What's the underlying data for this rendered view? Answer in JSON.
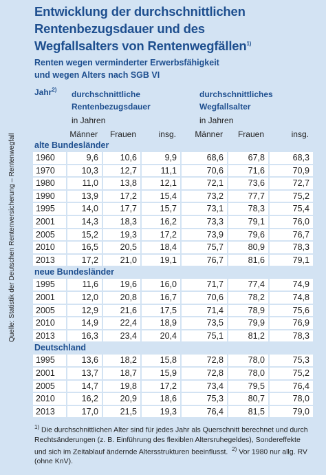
{
  "title": {
    "lines": [
      "Entwicklung der durchschnittlichen",
      "Rentenbezugsdauer und des",
      "Wegfallsalters von Rentenwegfällen"
    ],
    "note": "1)"
  },
  "subtitle": [
    "Renten wegen verminderter Erwerbsfähigkeit",
    "und wegen Alters nach SGB VI"
  ],
  "table": {
    "header": {
      "year": "Jahr",
      "year_note": "2)",
      "group1": [
        "durchschnittliche",
        "Rentenbezugsdauer",
        "in Jahren"
      ],
      "group2": [
        "durchschnittliches",
        "Wegfallsalter",
        "in Jahren"
      ],
      "columns": [
        "Männer",
        "Frauen",
        "insg.",
        "Männer",
        "Frauen",
        "insg."
      ]
    },
    "sections": [
      {
        "name": "alte Bundesländer",
        "rows": [
          [
            "1960",
            "9,6",
            "10,6",
            "9,9",
            "68,6",
            "67,8",
            "68,3"
          ],
          [
            "1970",
            "10,3",
            "12,7",
            "11,1",
            "70,6",
            "71,6",
            "70,9"
          ],
          [
            "1980",
            "11,0",
            "13,8",
            "12,1",
            "72,1",
            "73,6",
            "72,7"
          ],
          [
            "1990",
            "13,9",
            "17,2",
            "15,4",
            "73,2",
            "77,7",
            "75,2"
          ],
          [
            "1995",
            "14,0",
            "17,7",
            "15,7",
            "73,1",
            "78,3",
            "75,4"
          ],
          [
            "2001",
            "14,3",
            "18,3",
            "16,2",
            "73,3",
            "79,1",
            "76,0"
          ],
          [
            "2005",
            "15,2",
            "19,3",
            "17,2",
            "73,9",
            "79,6",
            "76,7"
          ],
          [
            "2010",
            "16,5",
            "20,5",
            "18,4",
            "75,7",
            "80,9",
            "78,3"
          ],
          [
            "2013",
            "17,2",
            "21,0",
            "19,1",
            "76,7",
            "81,6",
            "79,1"
          ]
        ]
      },
      {
        "name": "neue Bundesländer",
        "rows": [
          [
            "1995",
            "11,6",
            "19,6",
            "16,0",
            "71,7",
            "77,4",
            "74,9"
          ],
          [
            "2001",
            "12,0",
            "20,8",
            "16,7",
            "70,6",
            "78,2",
            "74,8"
          ],
          [
            "2005",
            "12,9",
            "21,6",
            "17,5",
            "71,4",
            "78,9",
            "75,6"
          ],
          [
            "2010",
            "14,9",
            "22,4",
            "18,9",
            "73,5",
            "79,9",
            "76,9"
          ],
          [
            "2013",
            "16,3",
            "23,4",
            "20,4",
            "75,1",
            "81,2",
            "78,3"
          ]
        ]
      },
      {
        "name": "Deutschland",
        "rows": [
          [
            "1995",
            "13,6",
            "18,2",
            "15,8",
            "72,8",
            "78,0",
            "75,3"
          ],
          [
            "2001",
            "13,7",
            "18,7",
            "15,9",
            "72,8",
            "78,0",
            "75,2"
          ],
          [
            "2005",
            "14,7",
            "19,8",
            "17,2",
            "73,4",
            "79,5",
            "76,4"
          ],
          [
            "2010",
            "16,2",
            "20,9",
            "18,6",
            "75,3",
            "80,7",
            "78,0"
          ],
          [
            "2013",
            "17,0",
            "21,5",
            "19,3",
            "76,4",
            "81,5",
            "79,0"
          ]
        ]
      }
    ]
  },
  "footnotes": [
    {
      "mark": "1)",
      "text": "Die durchschnittlichen Alter sind für jedes Jahr als Querschnitt berechnet und durch Rechtsänderungen (z. B. Einführung des flexiblen Altersruhegeldes), Sondereffekte und sich im Zeitablauf ändernde Altersstrukturen beeinflusst."
    },
    {
      "mark": "2)",
      "text": "Vor 1980 nur allg. RV (ohne KnV)."
    }
  ],
  "source": "Quelle: Statistik der Deutschen Rentenversicherung – Rentenwegfall"
}
